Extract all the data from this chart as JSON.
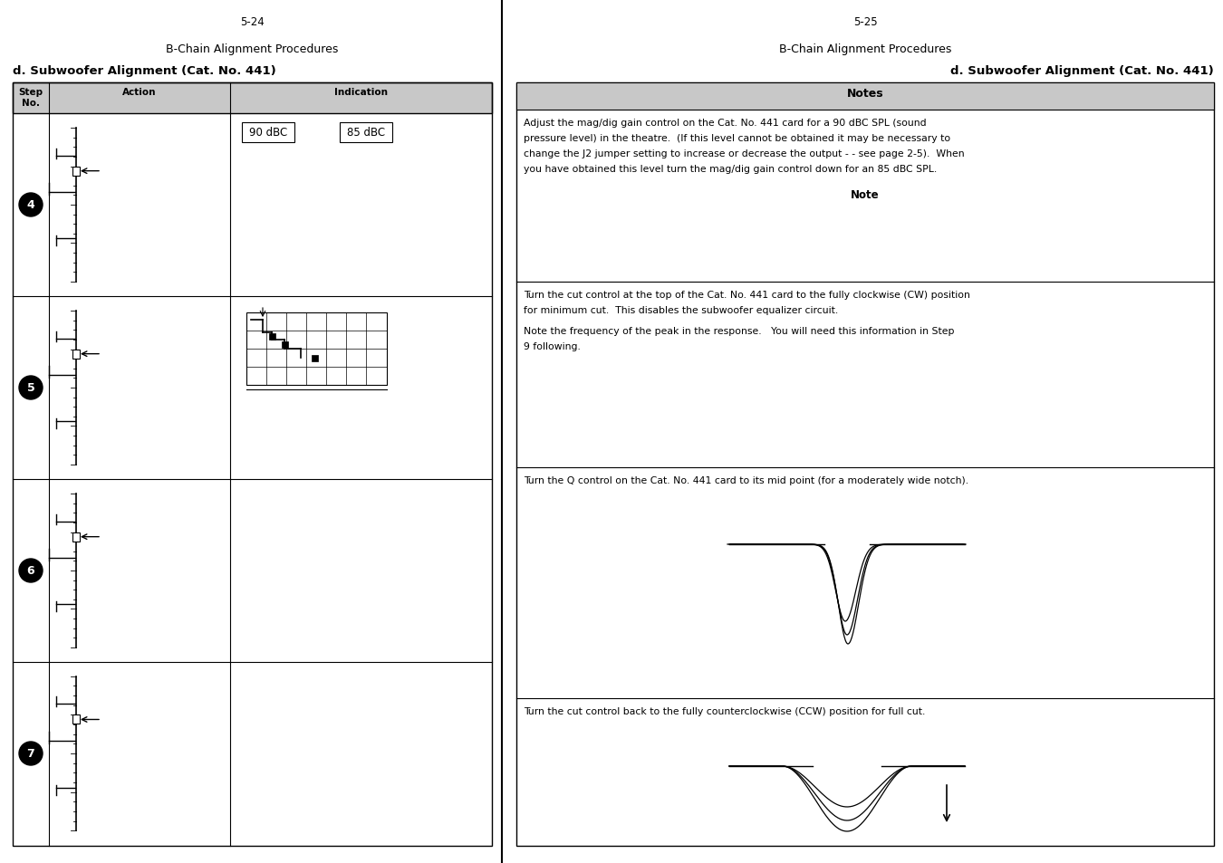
{
  "bg_color": "#ffffff",
  "left_page_num": "5-24",
  "right_page_num": "5-25",
  "header_title": "B-Chain Alignment Procedures",
  "left_subtitle": "d. Subwoofer Alignment (Cat. No. 441)",
  "right_subtitle": "d. Subwoofer Alignment (Cat. No. 441)",
  "col_headers": [
    "Step\nNo.",
    "Action",
    "Indication"
  ],
  "step_nums": [
    "4",
    "5",
    "6",
    "7"
  ],
  "notes_header": "Notes",
  "note4_text": "Adjust the mag/dig gain control on the Cat. No. 441 card for a 90 dBC SPL (sound\npressure level) in the theatre.  (If this level cannot be obtained it may be necessary to\nchange the J2 jumper setting to increase or decrease the output - - see page 2-5).  When\nyou have obtained this level turn the mag/dig gain control down for an 85 dBC SPL.",
  "note4_subtext": "Note",
  "note5_text_1": "Turn the cut control at the top of the Cat. No. 441 card to the fully clockwise (CW) position\nfor minimum cut.  This disables the subwoofer equalizer circuit.",
  "note5_text_2": "Note the frequency of the peak in the response.   You will need this information in Step\n9 following.",
  "note6_text": "Turn the Q control on the Cat. No. 441 card to its mid point (for a moderately wide notch).",
  "note7_text": "Turn the cut control back to the fully counterclockwise (CCW) position for full cut.",
  "dbc_label1": "90 dBC",
  "dbc_label2": "85 dBC",
  "page_bg": "#ffffff",
  "line_color": "#000000",
  "text_color": "#000000",
  "header_bg": "#c8c8c8"
}
